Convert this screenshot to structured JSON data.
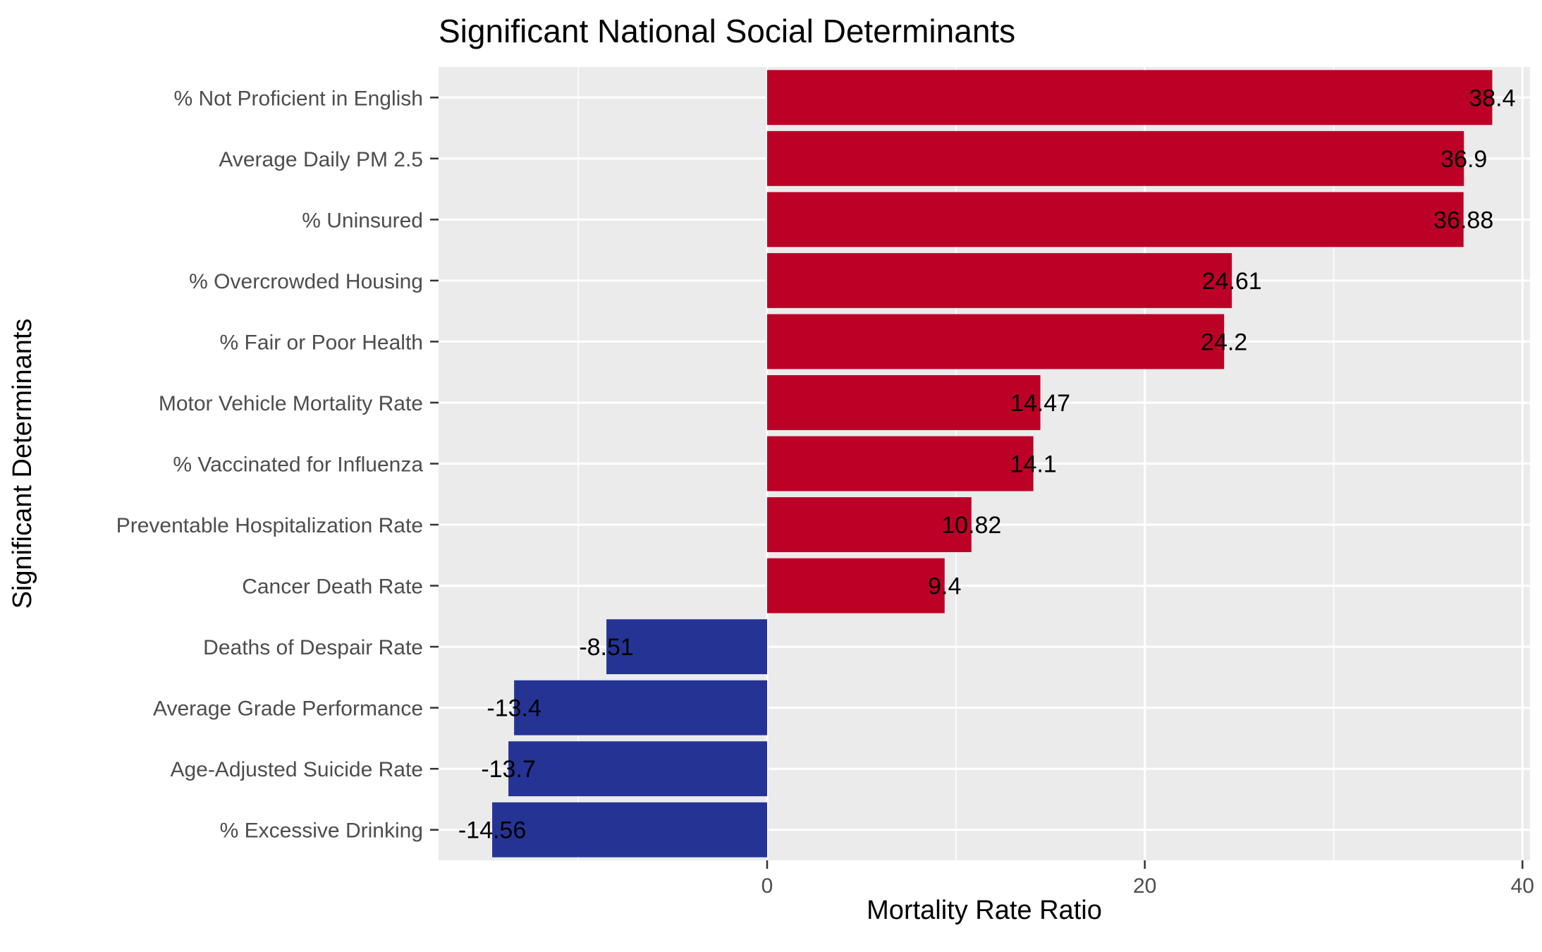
{
  "chart_data": {
    "type": "bar",
    "orientation": "horizontal",
    "title": "Significant National Social Determinants",
    "xlabel": "Mortality Rate Ratio",
    "ylabel": "Significant Determinants",
    "xlim": [
      -17.4,
      40.4
    ],
    "x_ticks": [
      0,
      20,
      40
    ],
    "grid": true,
    "legend": "none",
    "categories": [
      "% Not Proficient in English",
      "Average Daily PM 2.5",
      "% Uninsured",
      "% Overcrowded Housing",
      "% Fair or Poor Health",
      "Motor Vehicle Mortality Rate",
      "% Vaccinated for Influenza",
      "Preventable Hospitalization Rate",
      "Cancer Death Rate",
      "Deaths of Despair Rate",
      "Average Grade Performance",
      "Age-Adjusted Suicide Rate",
      "% Excessive Drinking"
    ],
    "values": [
      38.4,
      36.9,
      36.88,
      24.61,
      24.2,
      14.47,
      14.1,
      10.82,
      9.4,
      -8.51,
      -13.4,
      -13.7,
      -14.56
    ],
    "value_labels": [
      "38.4",
      "36.9",
      "36.88",
      "24.61",
      "24.2",
      "14.47",
      "14.1",
      "10.82",
      "9.4",
      "-8.51",
      "-13.4",
      "-13.7",
      "-14.56"
    ],
    "colors": {
      "positive": "#bd0026",
      "negative": "#253494",
      "panel": "#ebebeb",
      "grid": "#ffffff"
    }
  }
}
